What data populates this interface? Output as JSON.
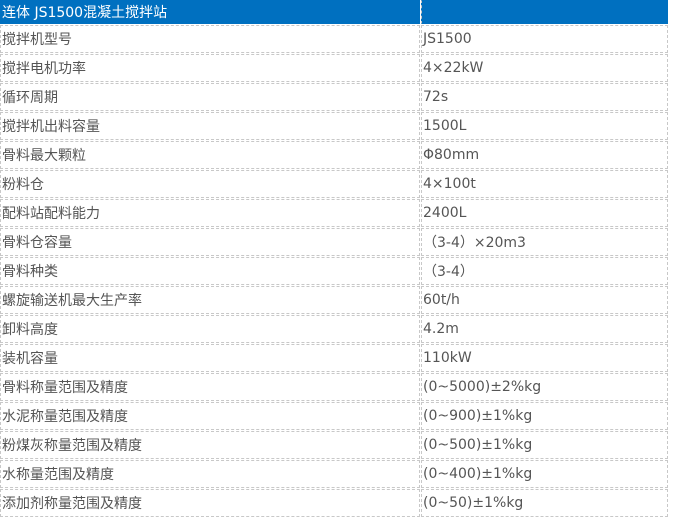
{
  "header": {
    "title": "连体 JS1500混凝土搅拌站",
    "value": ""
  },
  "rows": [
    {
      "label": "搅拌机型号",
      "value": "JS1500"
    },
    {
      "label": "搅拌电机功率",
      "value": "4×22kW"
    },
    {
      "label": "循环周期",
      "value": "72s"
    },
    {
      "label": "搅拌机出料容量",
      "value": "1500L"
    },
    {
      "label": "骨料最大颗粒",
      "value": "Φ80mm"
    },
    {
      "label": "粉料仓",
      "value": "4×100t"
    },
    {
      "label": "配料站配料能力",
      "value": "2400L"
    },
    {
      "label": "骨料仓容量",
      "value": "（3-4）×20m3"
    },
    {
      "label": "骨料种类",
      "value": "（3-4）"
    },
    {
      "label": "螺旋输送机最大生产率",
      "value": "60t/h"
    },
    {
      "label": "卸料高度",
      "value": "4.2m"
    },
    {
      "label": "装机容量",
      "value": "110kW"
    },
    {
      "label": "骨料称量范围及精度",
      "value": "(0~5000)±2%kg"
    },
    {
      "label": "水泥称量范围及精度",
      "value": "(0~900)±1%kg"
    },
    {
      "label": "粉煤灰称量范围及精度",
      "value": "(0~500)±1%kg"
    },
    {
      "label": "水称量范围及精度",
      "value": "(0~400)±1%kg"
    },
    {
      "label": "添加剂称量范围及精度",
      "value": "(0~50)±1%kg"
    }
  ],
  "colors": {
    "header_bg": "#0070c0",
    "text": "#555555",
    "border": "#c8c8c8"
  }
}
